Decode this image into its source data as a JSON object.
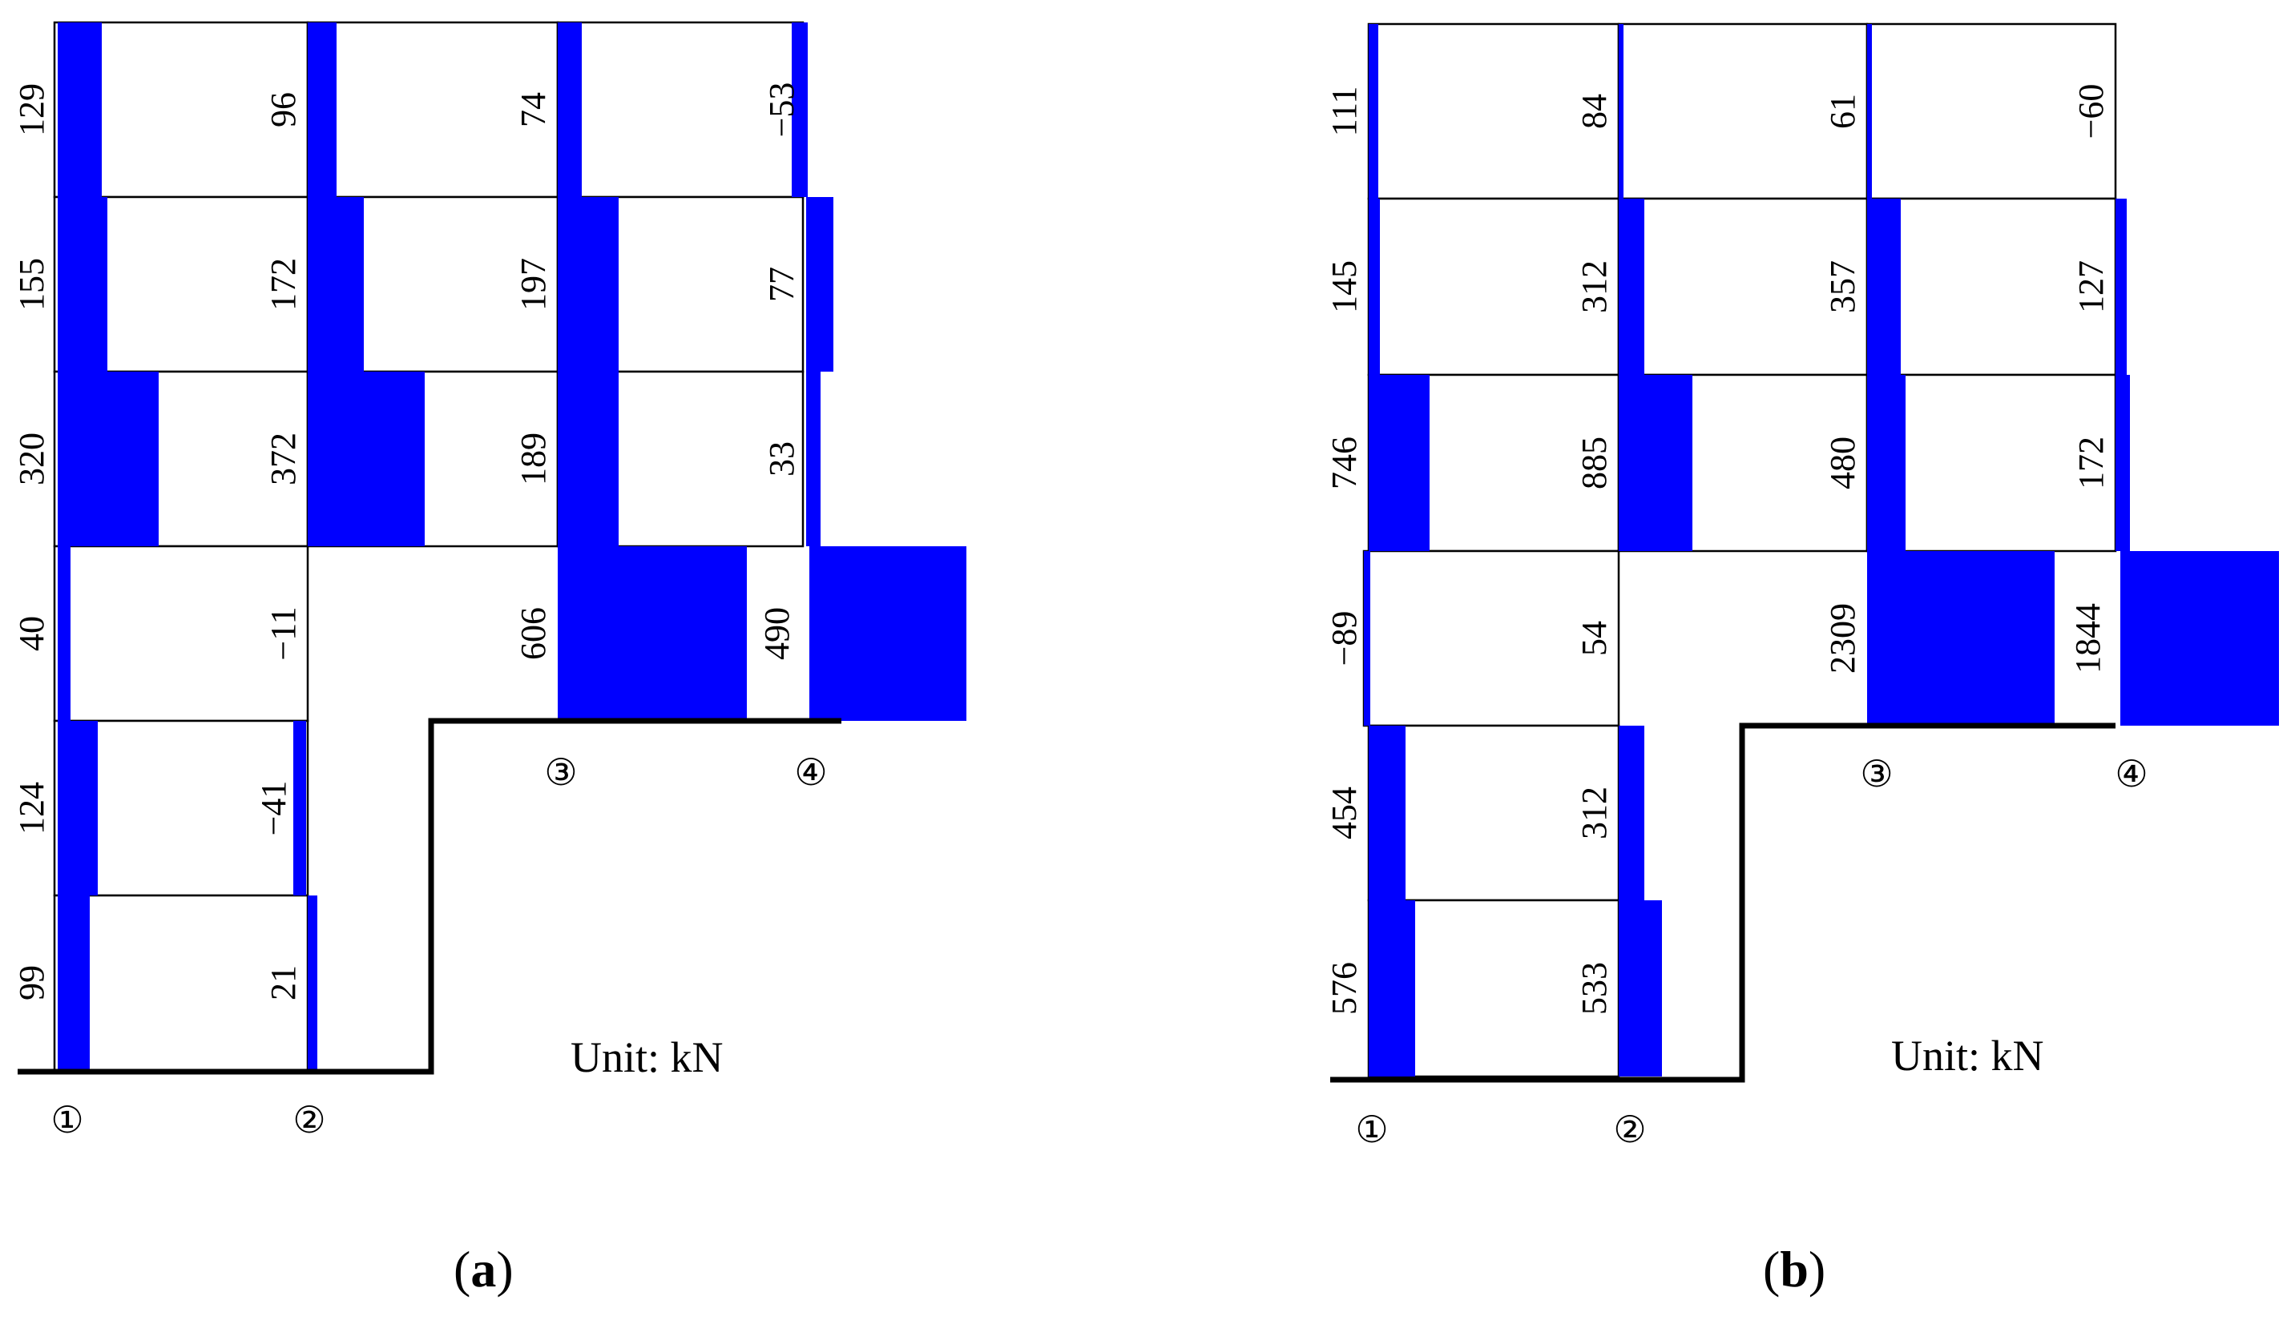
{
  "colors": {
    "bar_fill": "#0000ff",
    "line": "#000000",
    "background": "#ffffff"
  },
  "panels": [
    {
      "id": "a",
      "caption_open": "(",
      "caption_letter": "a",
      "caption_close": ")",
      "unit_label": "Unit: kN",
      "axis_labels": [
        "①",
        "②",
        "③",
        "④"
      ],
      "column_axis_1": [
        "129",
        "155",
        "320",
        "40",
        "124",
        "99"
      ],
      "column_axis_2": [
        "96",
        "172",
        "372",
        "−11",
        "−41",
        "21"
      ],
      "column_axis_3": [
        "74",
        "197",
        "189",
        "606"
      ],
      "column_axis_4": [
        "−53",
        "77",
        "33",
        "490"
      ]
    },
    {
      "id": "b",
      "caption_open": "(",
      "caption_letter": "b",
      "caption_close": ")",
      "unit_label": "Unit: kN",
      "axis_labels": [
        "①",
        "②",
        "③",
        "④"
      ],
      "column_axis_1": [
        "111",
        "145",
        "746",
        "−89",
        "454",
        "576"
      ],
      "column_axis_2": [
        "84",
        "312",
        "885",
        "54",
        "312",
        "533"
      ],
      "column_axis_3": [
        "61",
        "357",
        "480",
        "2309"
      ],
      "column_axis_4": [
        "−60",
        "127",
        "172",
        "1844"
      ]
    }
  ]
}
